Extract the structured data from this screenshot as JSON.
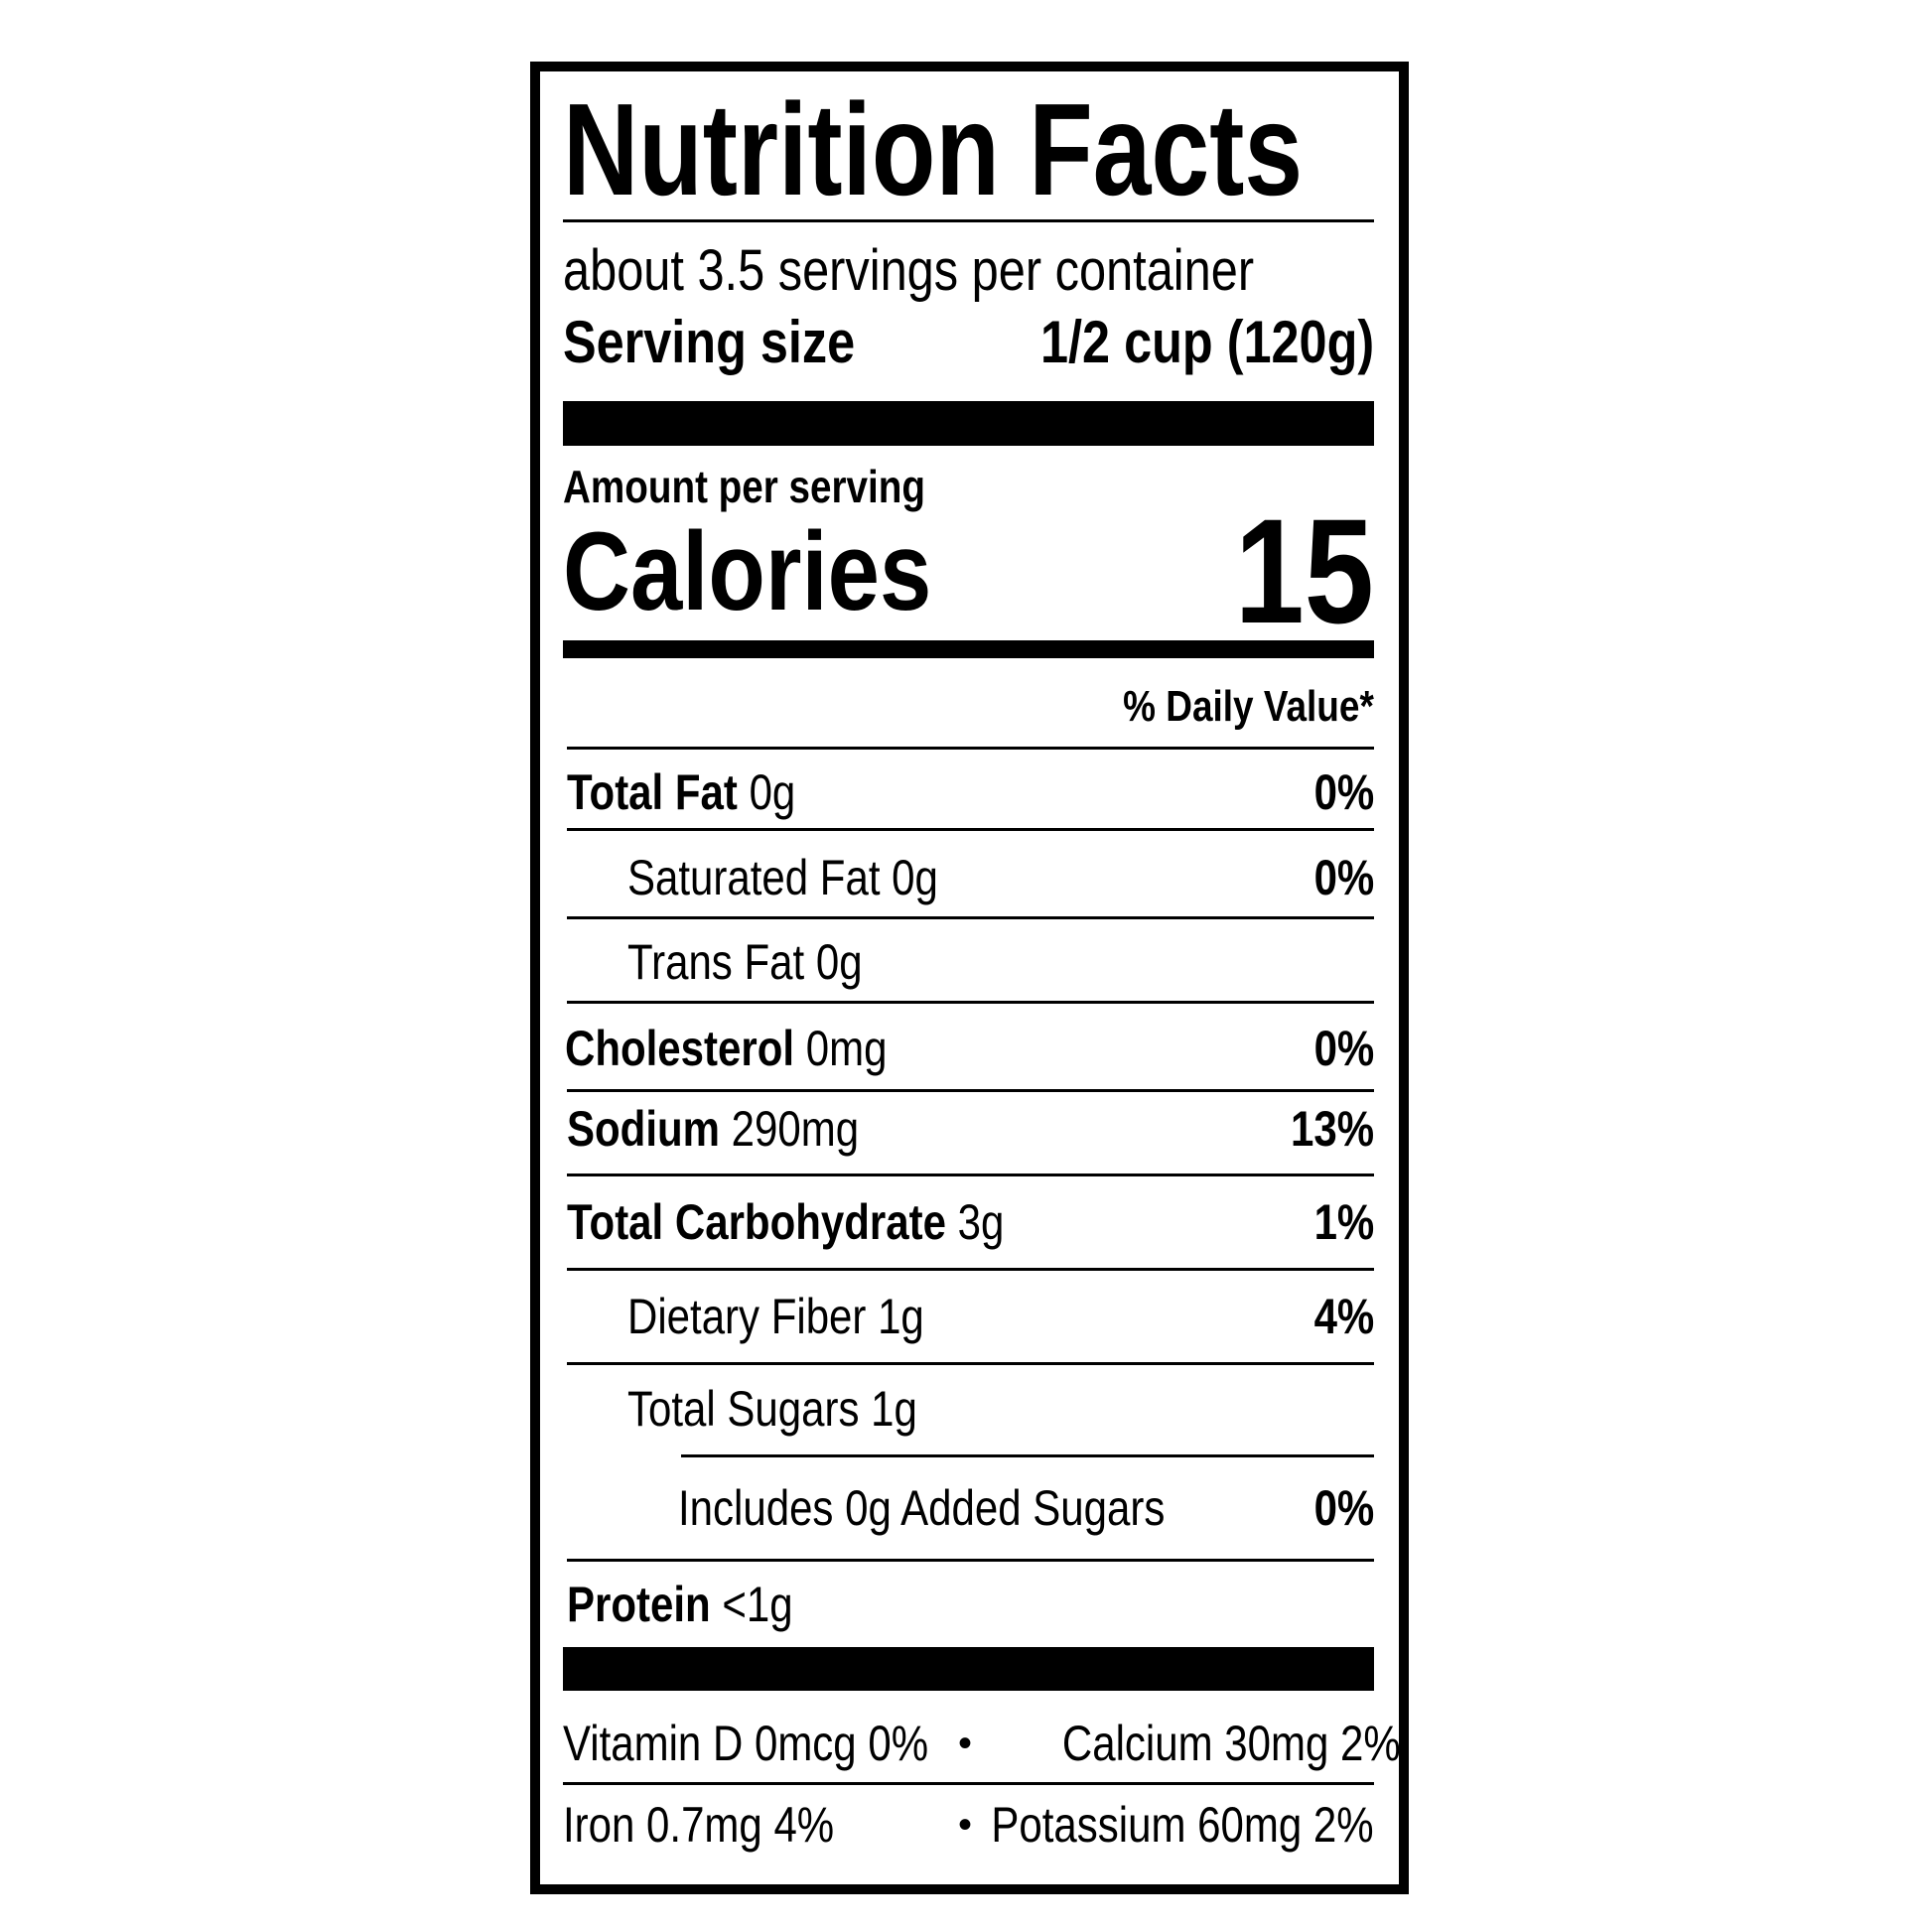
{
  "title": "Nutrition Facts",
  "servings_per_container": "about 3.5 servings per container",
  "serving_size": {
    "label": "Serving size",
    "value": "1/2 cup (120g)"
  },
  "amount_per_serving": "Amount per serving",
  "calories": {
    "label": "Calories",
    "value": "15"
  },
  "daily_value_header": "% Daily Value*",
  "nutrients": [
    {
      "name": "Total Fat",
      "amount": "0g",
      "dv": "0%"
    },
    {
      "name": "Saturated Fat",
      "amount": "0g",
      "dv": "0%"
    },
    {
      "name": "Trans Fat",
      "amount": "0g",
      "dv": ""
    },
    {
      "name": "Cholesterol",
      "amount": "0mg",
      "dv": "0%"
    },
    {
      "name": "Sodium",
      "amount": "290mg",
      "dv": "13%"
    },
    {
      "name": "Total Carbohydrate",
      "amount": "3g",
      "dv": "1%"
    },
    {
      "name": "Dietary Fiber",
      "amount": "1g",
      "dv": "4%"
    },
    {
      "name": "Total Sugars",
      "amount": "1g",
      "dv": ""
    },
    {
      "name": "Includes 0g Added Sugars",
      "amount": "",
      "dv": "0%"
    },
    {
      "name": "Protein",
      "amount": "<1g",
      "dv": ""
    }
  ],
  "micros": [
    {
      "left": "Vitamin D 0mcg 0%",
      "right": "Calcium 30mg 2%"
    },
    {
      "left": "Iron 0.7mg 4%",
      "right": "Potassium 60mg 2%"
    }
  ],
  "bullet": "•"
}
